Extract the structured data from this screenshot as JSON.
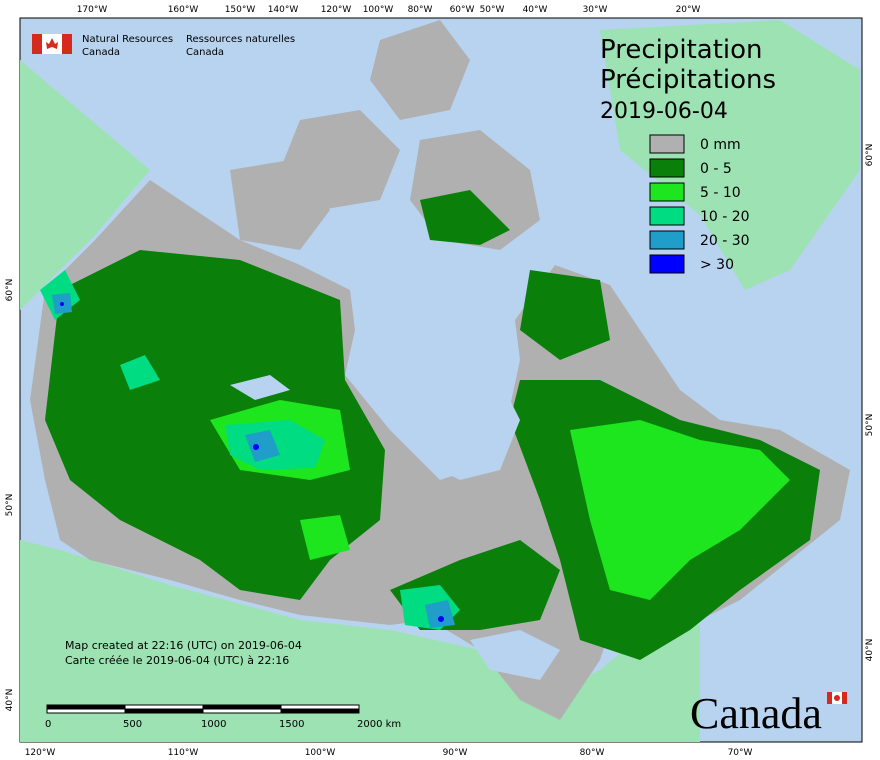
{
  "header": {
    "agency_en": [
      "Natural Resources",
      "Canada"
    ],
    "agency_fr": [
      "Ressources naturelles",
      "Canada"
    ]
  },
  "title": {
    "en": "Precipitation",
    "fr": "Précipitations",
    "date": "2019-06-04"
  },
  "legend": [
    {
      "label": "0 mm",
      "color": "#b0b0b0"
    },
    {
      "label": "0 - 5",
      "color": "#0a800a"
    },
    {
      "label": "5 - 10",
      "color": "#1ee61e"
    },
    {
      "label": "10 - 20",
      "color": "#00dc82"
    },
    {
      "label": "20 - 30",
      "color": "#1e9ec8"
    },
    {
      "label": "> 30",
      "color": "#0000ff"
    }
  ],
  "graticule": {
    "top": [
      "170°W",
      "160°W",
      "150°W",
      "140°W",
      "120°W",
      "100°W",
      "80°W",
      "60°W",
      "50°W",
      "40°W",
      "30°W",
      "20°W"
    ],
    "bottom": [
      "120°W",
      "110°W",
      "100°W",
      "90°W",
      "80°W",
      "70°W"
    ],
    "left": [
      "60°N",
      "50°N",
      "40°N"
    ],
    "right": [
      "60°N",
      "50°N",
      "40°N"
    ]
  },
  "scale_bar": [
    "0",
    "500",
    "1000",
    "1500",
    "2000 km"
  ],
  "notes": [
    "Map created at 22:16 (UTC) on 2019-06-04",
    "Carte créée le 2019-06-04 (UTC) à 22:16"
  ],
  "wordmark": "Canada"
}
